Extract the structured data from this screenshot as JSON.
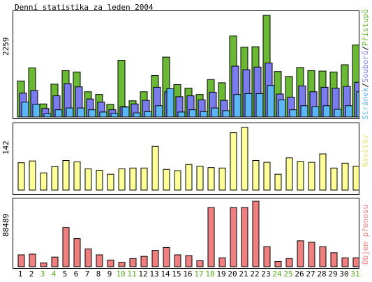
{
  "title": "Denní statistika za leden 2004",
  "colors": {
    "pristupy": "#6ab833",
    "soubory": "#7b7bf0",
    "stranky": "#5db7f7",
    "navstevy": "#ffff99",
    "objem": "#f08080",
    "weekend_day": "#55aa22",
    "weekday": "#000000"
  },
  "legend_top": {
    "stranek": "Stránek",
    "sep1": "/",
    "souboru": "Souborů",
    "sep2": "/",
    "pristupu": "Přístupů"
  },
  "legend_mid": "Návštěv",
  "legend_bot": "Objem přenosu",
  "chart_data": [
    {
      "type": "bar",
      "categories": [
        "1",
        "2",
        "3",
        "4",
        "5",
        "6",
        "7",
        "8",
        "9",
        "10",
        "11",
        "12",
        "13",
        "14",
        "15",
        "16",
        "17",
        "18",
        "19",
        "20",
        "21",
        "22",
        "23",
        "24",
        "25",
        "26",
        "27",
        "28",
        "29",
        "30",
        "31"
      ],
      "ymax_label": "2259",
      "ylim": [
        0,
        2259
      ],
      "series": [
        {
          "name": "Přístupů",
          "values": [
            800,
            1090,
            290,
            730,
            1030,
            1000,
            560,
            500,
            280,
            1260,
            360,
            560,
            920,
            1330,
            720,
            640,
            500,
            830,
            760,
            1800,
            1550,
            1560,
            2259,
            1010,
            900,
            1100,
            1030,
            1020,
            1000,
            1160,
            1600
          ]
        },
        {
          "name": "Souborů",
          "values": [
            530,
            590,
            190,
            470,
            740,
            670,
            400,
            330,
            160,
            230,
            290,
            370,
            660,
            560,
            450,
            470,
            380,
            550,
            370,
            1130,
            1050,
            1110,
            1200,
            510,
            440,
            690,
            560,
            660,
            640,
            680,
            770
          ]
        },
        {
          "name": "Stránek",
          "values": [
            330,
            280,
            70,
            160,
            200,
            200,
            160,
            110,
            80,
            220,
            90,
            120,
            250,
            630,
            110,
            160,
            120,
            200,
            140,
            500,
            520,
            520,
            700,
            380,
            160,
            250,
            230,
            250,
            170,
            250,
            560
          ]
        }
      ]
    },
    {
      "type": "bar",
      "categories": [
        "1",
        "2",
        "3",
        "4",
        "5",
        "6",
        "7",
        "8",
        "9",
        "10",
        "11",
        "12",
        "13",
        "14",
        "15",
        "16",
        "17",
        "18",
        "19",
        "20",
        "21",
        "22",
        "23",
        "24",
        "25",
        "26",
        "27",
        "28",
        "29",
        "30",
        "31"
      ],
      "ymax_label": "142",
      "ylim": [
        0,
        142
      ],
      "series": [
        {
          "name": "Návštěv",
          "values": [
            62,
            66,
            39,
            53,
            67,
            64,
            48,
            45,
            36,
            48,
            50,
            50,
            99,
            47,
            44,
            58,
            54,
            51,
            50,
            130,
            142,
            67,
            63,
            36,
            73,
            65,
            63,
            82,
            50,
            61,
            54
          ]
        }
      ]
    },
    {
      "type": "bar",
      "categories": [
        "1",
        "2",
        "3",
        "4",
        "5",
        "6",
        "7",
        "8",
        "9",
        "10",
        "11",
        "12",
        "13",
        "14",
        "15",
        "16",
        "17",
        "18",
        "19",
        "20",
        "21",
        "22",
        "23",
        "24",
        "25",
        "26",
        "27",
        "28",
        "29",
        "30",
        "31"
      ],
      "ymax_label": "88489",
      "ylim": [
        0,
        88489
      ],
      "series": [
        {
          "name": "Objem přenosu",
          "values": [
            16000,
            17000,
            5000,
            13000,
            53000,
            38000,
            24000,
            16000,
            9000,
            6000,
            11000,
            14000,
            22000,
            26000,
            16000,
            15000,
            8000,
            80000,
            12000,
            80000,
            80000,
            88489,
            27000,
            7000,
            11000,
            35000,
            33000,
            27000,
            19000,
            12000,
            12000
          ]
        }
      ]
    }
  ]
}
